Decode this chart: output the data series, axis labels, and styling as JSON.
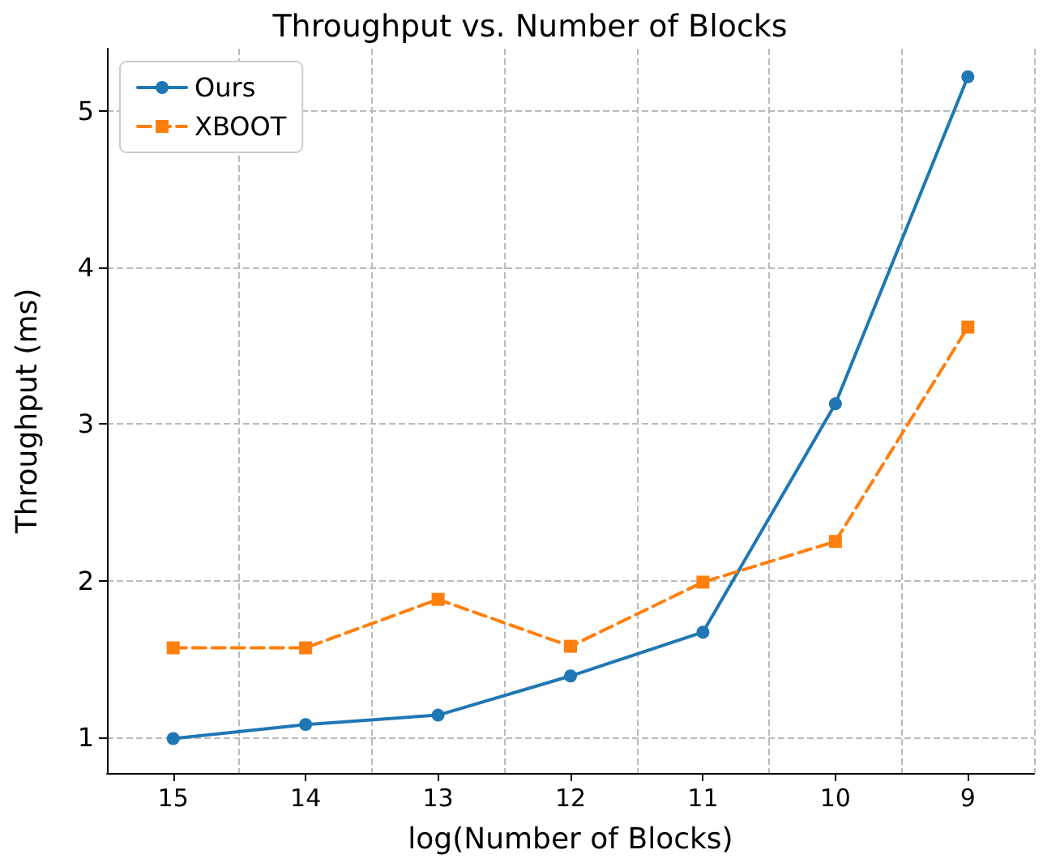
{
  "chart_data": {
    "type": "line",
    "title": "Throughput vs. Number of Blocks",
    "xlabel": "log(Number of Blocks)",
    "ylabel": "Throughput (ms)",
    "categories": [
      "15",
      "14",
      "13",
      "12",
      "11",
      "10",
      "9"
    ],
    "series": [
      {
        "name": "Ours",
        "color": "#1f77b4",
        "marker": "circle",
        "line_style": "solid",
        "values": [
          0.99,
          1.08,
          1.14,
          1.39,
          1.67,
          3.13,
          5.22
        ]
      },
      {
        "name": "XBOOT",
        "color": "#ff7f0e",
        "marker": "square",
        "line_style": "dashed",
        "values": [
          1.57,
          1.57,
          1.88,
          1.58,
          1.99,
          2.25,
          3.62
        ]
      }
    ],
    "ylim": [
      0.77,
      5.4
    ],
    "yticks": [
      1,
      2,
      3,
      4,
      5
    ],
    "grid": true,
    "legend": "top left"
  }
}
